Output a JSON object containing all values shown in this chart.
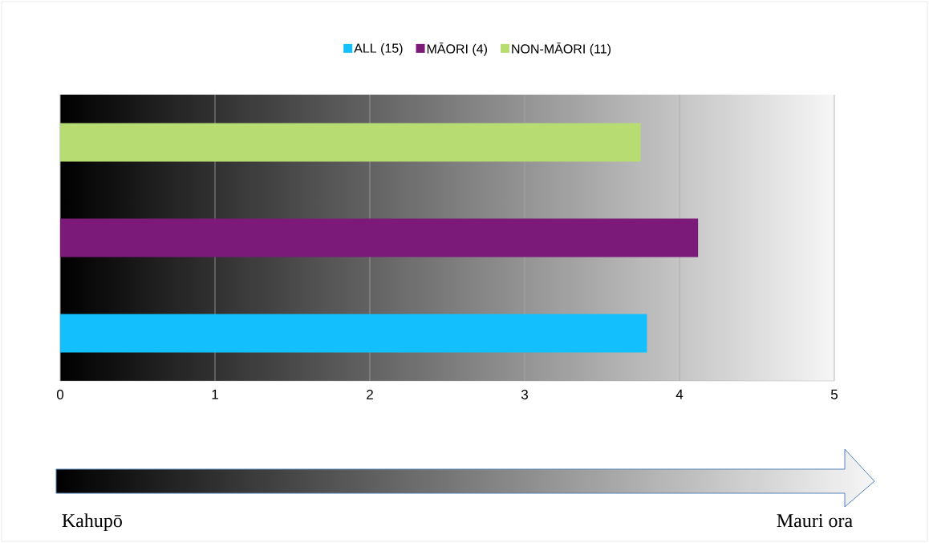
{
  "chart_data": {
    "type": "bar",
    "orientation": "horizontal",
    "categories": [
      null
    ],
    "series": [
      {
        "name": "ALL (15)",
        "color": "#13c0fd",
        "values": [
          3.79
        ]
      },
      {
        "name": "MĀORI (4)",
        "color": "#7b1a78",
        "values": [
          4.12
        ]
      },
      {
        "name": "NON-MĀORI (11)",
        "color": "#b6dc72",
        "values": [
          3.75
        ]
      }
    ],
    "xlim": [
      0,
      5
    ],
    "xticks": [
      0,
      1,
      2,
      3,
      4,
      5
    ],
    "grid": "x",
    "legend": "top",
    "tick_labels": "x",
    "annotations": [
      "Kahupō",
      "Mauri ora"
    ]
  }
}
